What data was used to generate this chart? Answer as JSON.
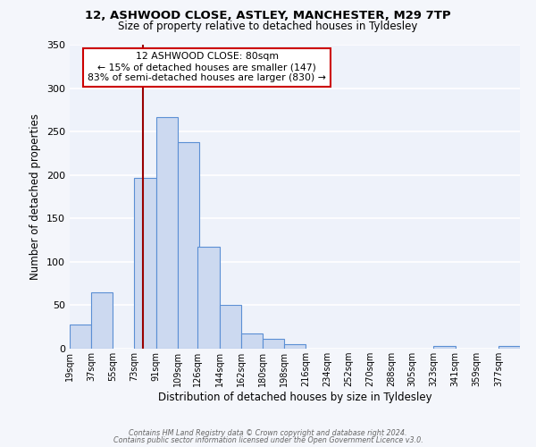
{
  "title1": "12, ASHWOOD CLOSE, ASTLEY, MANCHESTER, M29 7TP",
  "title2": "Size of property relative to detached houses in Tyldesley",
  "xlabel": "Distribution of detached houses by size in Tyldesley",
  "ylabel": "Number of detached properties",
  "bin_labels": [
    "19sqm",
    "37sqm",
    "55sqm",
    "73sqm",
    "91sqm",
    "109sqm",
    "126sqm",
    "144sqm",
    "162sqm",
    "180sqm",
    "198sqm",
    "216sqm",
    "234sqm",
    "252sqm",
    "270sqm",
    "288sqm",
    "305sqm",
    "323sqm",
    "341sqm",
    "359sqm",
    "377sqm"
  ],
  "bin_edges": [
    19,
    37,
    55,
    73,
    91,
    109,
    126,
    144,
    162,
    180,
    198,
    216,
    234,
    252,
    270,
    288,
    305,
    323,
    341,
    359,
    377
  ],
  "bar_heights": [
    28,
    65,
    0,
    197,
    267,
    238,
    117,
    50,
    18,
    11,
    5,
    0,
    0,
    0,
    0,
    0,
    0,
    3,
    0,
    0,
    3
  ],
  "bar_color": "#ccd9f0",
  "bar_edge_color": "#5b8fd4",
  "background_color": "#eef2fa",
  "grid_color": "#ffffff",
  "ylim": [
    0,
    350
  ],
  "yticks": [
    0,
    50,
    100,
    150,
    200,
    250,
    300,
    350
  ],
  "property_line_x": 80,
  "property_line_color": "#990000",
  "annotation_title": "12 ASHWOOD CLOSE: 80sqm",
  "annotation_line1": "← 15% of detached houses are smaller (147)",
  "annotation_line2": "83% of semi-detached houses are larger (830) →",
  "annotation_box_color": "#ffffff",
  "annotation_box_edge": "#cc0000",
  "footer1": "Contains HM Land Registry data © Crown copyright and database right 2024.",
  "footer2": "Contains public sector information licensed under the Open Government Licence v3.0."
}
